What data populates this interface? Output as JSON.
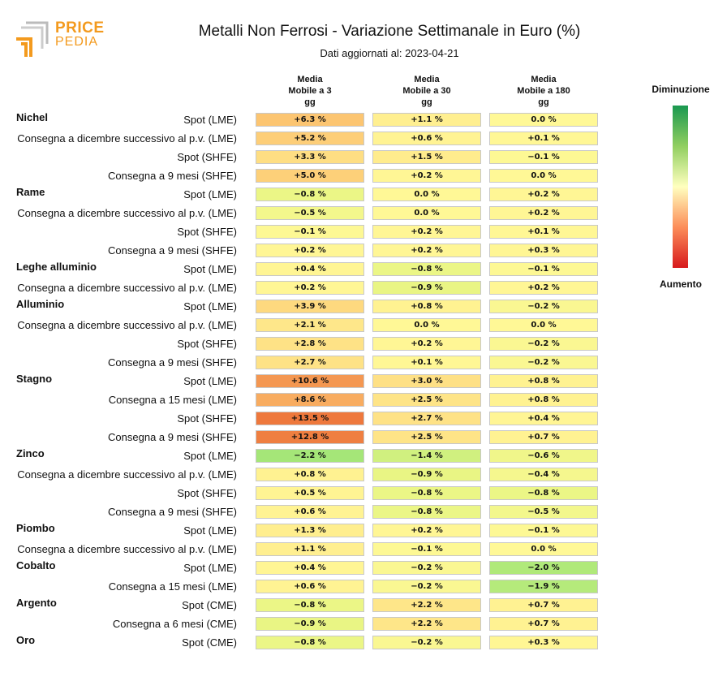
{
  "header": {
    "title": "Metalli Non Ferrosi - Variazione Settimanale in Euro (%)",
    "subtitle": "Dati aggiornati al: 2023-04-21",
    "logo_top": "PRICE",
    "logo_bottom": "PEDIA"
  },
  "legend": {
    "top_label": "Diminuzione",
    "bottom_label": "Aumento",
    "colors": [
      "#1a9850",
      "#91cf60",
      "#ffffbf",
      "#fc8d59",
      "#d7191c"
    ]
  },
  "chart_data": {
    "type": "heatmap",
    "title": "Metalli Non Ferrosi - Variazione Settimanale in Euro (%)",
    "columns": [
      "Media Mobile a 3 gg",
      "Media Mobile a 30 gg",
      "Media Mobile a 180 gg"
    ],
    "column_header_lines": [
      [
        "Media",
        "Mobile a 3",
        "gg"
      ],
      [
        "Media",
        "Mobile a 30",
        "gg"
      ],
      [
        "Media",
        "Mobile a 180",
        "gg"
      ]
    ],
    "unit": "%",
    "rows": [
      {
        "group": "Nichel",
        "label": "Spot (LME)",
        "values": [
          6.3,
          1.1,
          0.0
        ]
      },
      {
        "group": "",
        "label": "Consegna a dicembre successivo al p.v. (LME)",
        "values": [
          5.2,
          0.6,
          0.1
        ]
      },
      {
        "group": "",
        "label": "Spot (SHFE)",
        "values": [
          3.3,
          1.5,
          -0.1
        ]
      },
      {
        "group": "",
        "label": "Consegna a 9 mesi (SHFE)",
        "values": [
          5.0,
          0.2,
          0.0
        ]
      },
      {
        "group": "Rame",
        "label": "Spot (LME)",
        "values": [
          -0.8,
          0.0,
          0.2
        ]
      },
      {
        "group": "",
        "label": "Consegna a dicembre successivo al p.v. (LME)",
        "values": [
          -0.5,
          0.0,
          0.2
        ]
      },
      {
        "group": "",
        "label": "Spot (SHFE)",
        "values": [
          -0.1,
          0.2,
          0.1
        ]
      },
      {
        "group": "",
        "label": "Consegna a 9 mesi (SHFE)",
        "values": [
          0.2,
          0.2,
          0.3
        ]
      },
      {
        "group": "Leghe alluminio",
        "label": "Spot (LME)",
        "values": [
          0.4,
          -0.8,
          -0.1
        ]
      },
      {
        "group": "",
        "label": "Consegna a dicembre successivo al p.v. (LME)",
        "values": [
          0.2,
          -0.9,
          0.2
        ]
      },
      {
        "group": "Alluminio",
        "label": "Spot (LME)",
        "values": [
          3.9,
          0.8,
          -0.2
        ]
      },
      {
        "group": "",
        "label": "Consegna a dicembre successivo al p.v. (LME)",
        "values": [
          2.1,
          0.0,
          0.0
        ]
      },
      {
        "group": "",
        "label": "Spot (SHFE)",
        "values": [
          2.8,
          0.2,
          -0.2
        ]
      },
      {
        "group": "",
        "label": "Consegna a 9 mesi (SHFE)",
        "values": [
          2.7,
          0.1,
          -0.2
        ]
      },
      {
        "group": "Stagno",
        "label": "Spot (LME)",
        "values": [
          10.6,
          3.0,
          0.8
        ]
      },
      {
        "group": "",
        "label": "Consegna a 15 mesi (LME)",
        "values": [
          8.6,
          2.5,
          0.8
        ]
      },
      {
        "group": "",
        "label": "Spot (SHFE)",
        "values": [
          13.5,
          2.7,
          0.4
        ]
      },
      {
        "group": "",
        "label": "Consegna a 9 mesi (SHFE)",
        "values": [
          12.8,
          2.5,
          0.7
        ]
      },
      {
        "group": "Zinco",
        "label": "Spot (LME)",
        "values": [
          -2.2,
          -1.4,
          -0.6
        ]
      },
      {
        "group": "",
        "label": "Consegna a dicembre successivo al p.v. (LME)",
        "values": [
          0.8,
          -0.9,
          -0.4
        ]
      },
      {
        "group": "",
        "label": "Spot (SHFE)",
        "values": [
          0.5,
          -0.8,
          -0.8
        ]
      },
      {
        "group": "",
        "label": "Consegna a 9 mesi (SHFE)",
        "values": [
          0.6,
          -0.8,
          -0.5
        ]
      },
      {
        "group": "Piombo",
        "label": "Spot (LME)",
        "values": [
          1.3,
          0.2,
          -0.1
        ]
      },
      {
        "group": "",
        "label": "Consegna a dicembre successivo al p.v. (LME)",
        "values": [
          1.1,
          -0.1,
          0.0
        ]
      },
      {
        "group": "Cobalto",
        "label": "Spot (LME)",
        "values": [
          0.4,
          -0.2,
          -2.0
        ]
      },
      {
        "group": "",
        "label": "Consegna a 15 mesi (LME)",
        "values": [
          0.6,
          -0.2,
          -1.9
        ]
      },
      {
        "group": "Argento",
        "label": "Spot (CME)",
        "values": [
          -0.8,
          2.2,
          0.7
        ]
      },
      {
        "group": "",
        "label": "Consegna a 6 mesi (CME)",
        "values": [
          -0.9,
          2.2,
          0.7
        ]
      },
      {
        "group": "Oro",
        "label": "Spot (CME)",
        "values": [
          -0.8,
          -0.2,
          0.3
        ]
      }
    ]
  }
}
